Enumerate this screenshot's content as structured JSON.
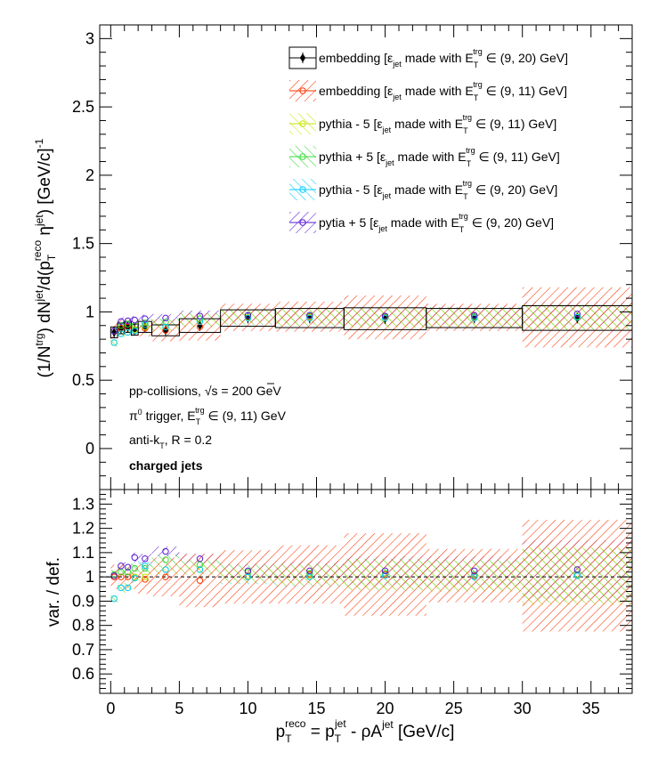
{
  "chart_data": [
    {
      "type": "scatter",
      "panel": "top",
      "ylabel_parts": {
        "a": "(1/N",
        "a_sup": "trg",
        "b": ") dN",
        "b_sup": "jet",
        "c": "/d(p",
        "c_sub": "T",
        "c_sup": "reco",
        "d": " η",
        "d_sup": "jet",
        "e": ") [GeV/c]",
        "e_sup": "-1"
      },
      "xlim": [
        -0.8,
        38
      ],
      "ylim": [
        -0.3,
        3.1
      ],
      "yticks": [
        "0",
        "0.5",
        "1",
        "1.5",
        "2",
        "2.5",
        "3"
      ],
      "yticks_values": [
        0,
        0.5,
        1,
        1.5,
        2,
        2.5,
        3
      ],
      "bins": [
        [
          0,
          0.5
        ],
        [
          0.5,
          1
        ],
        [
          1,
          1.5
        ],
        [
          1.5,
          2
        ],
        [
          2,
          3
        ],
        [
          3,
          5
        ],
        [
          5,
          8
        ],
        [
          8,
          12
        ],
        [
          12,
          17
        ],
        [
          17,
          23
        ],
        [
          23,
          30
        ],
        [
          30,
          38
        ]
      ],
      "x_centers": [
        0.25,
        0.75,
        1.25,
        1.75,
        2.5,
        4.0,
        6.5,
        10.0,
        14.5,
        20.0,
        26.5,
        34.0
      ],
      "series": [
        {
          "key": "emb20",
          "color": "#000000",
          "y": [
            0.85,
            0.88,
            0.89,
            0.87,
            0.89,
            0.865,
            0.9,
            0.955,
            0.955,
            0.95,
            0.955,
            0.955
          ],
          "sys": [
            0.04,
            0.04,
            0.04,
            0.04,
            0.04,
            0.04,
            0.05,
            0.06,
            0.07,
            0.08,
            0.07,
            0.09
          ]
        },
        {
          "key": "emb11",
          "color": "#ff3300",
          "y": [
            0.86,
            0.88,
            0.89,
            0.87,
            0.88,
            0.865,
            0.89,
            0.96,
            0.965,
            0.96,
            0.96,
            0.96
          ],
          "sys": [
            0.06,
            0.06,
            0.06,
            0.06,
            0.06,
            0.08,
            0.1,
            0.1,
            0.11,
            0.16,
            0.1,
            0.22
          ]
        },
        {
          "key": "pyMinus11",
          "color": "#c8e600",
          "y": [
            0.775,
            0.84,
            0.85,
            0.87,
            0.89,
            0.89,
            0.93,
            0.96,
            0.96,
            0.955,
            0.955,
            0.96
          ],
          "sys": [
            0.03,
            0.03,
            0.03,
            0.03,
            0.03,
            0.03,
            0.04,
            0.05,
            0.06,
            0.07,
            0.07,
            0.09
          ]
        },
        {
          "key": "pyPlus11",
          "color": "#33dd33",
          "y": [
            0.86,
            0.9,
            0.91,
            0.9,
            0.92,
            0.925,
            0.95,
            0.975,
            0.97,
            0.965,
            0.965,
            0.965
          ],
          "sys": [
            0.03,
            0.03,
            0.03,
            0.03,
            0.03,
            0.03,
            0.04,
            0.05,
            0.06,
            0.07,
            0.07,
            0.09
          ]
        },
        {
          "key": "pyMinus20",
          "color": "#00ccff",
          "y": [
            0.775,
            0.84,
            0.85,
            0.86,
            0.905,
            0.89,
            0.93,
            0.955,
            0.955,
            0.955,
            0.955,
            0.96
          ],
          "sys": [
            0.03,
            0.03,
            0.03,
            0.03,
            0.03,
            0.03,
            0.04,
            0.05,
            0.06,
            0.07,
            0.07,
            0.09
          ]
        },
        {
          "key": "pyPlus20",
          "color": "#5a1ad6",
          "y": [
            0.86,
            0.93,
            0.935,
            0.94,
            0.95,
            0.955,
            0.97,
            0.975,
            0.975,
            0.97,
            0.975,
            0.985
          ],
          "sys": [
            0.03,
            0.03,
            0.03,
            0.03,
            0.03,
            0.03,
            0.04,
            0.05,
            0.06,
            0.07,
            0.07,
            0.09
          ]
        }
      ],
      "legend_placement": "top-right",
      "legend": [
        {
          "key": "emb20",
          "name_pre": "embedding [ε",
          "name_sub": "jet",
          "name_mid": " made with E",
          "name_msub": "T",
          "name_msup": "trg",
          "name_post": " ∈ (9, 20) GeV]"
        },
        {
          "key": "emb11",
          "name_pre": "embedding [ε",
          "name_sub": "jet",
          "name_mid": " made with E",
          "name_msub": "T",
          "name_msup": "trg",
          "name_post": " ∈ (9, 11) GeV]"
        },
        {
          "key": "pyMinus11",
          "name_pre": "pythia - 5 [ε",
          "name_sub": "jet",
          "name_mid": " made with E",
          "name_msub": "T",
          "name_msup": "trg",
          "name_post": " ∈ (9, 11) GeV]"
        },
        {
          "key": "pyPlus11",
          "name_pre": "pythia + 5 [ε",
          "name_sub": "jet",
          "name_mid": " made with E",
          "name_msub": "T",
          "name_msup": "trg",
          "name_post": " ∈ (9, 11) GeV]"
        },
        {
          "key": "pyMinus20",
          "name_pre": "pythia - 5 [ε",
          "name_sub": "jet",
          "name_mid": " made with E",
          "name_msub": "T",
          "name_msup": "trg",
          "name_post": " ∈ (9, 20) GeV]"
        },
        {
          "key": "pyPlus20",
          "name_pre": "pytia + 5 [ε",
          "name_sub": "jet",
          "name_mid": " made with E",
          "name_msub": "T",
          "name_msup": "trg",
          "name_post": " ∈ (9, 20) GeV]"
        }
      ],
      "annotations": {
        "line1_pre": "pp-collisions, ",
        "line1_root": "s",
        "line1_post": " = 200 GeV",
        "line2_a": "π",
        "line2_a_sup": "0",
        "line2_b": " trigger, E",
        "line2_b_sub": "T",
        "line2_b_sup": "trg",
        "line2_c": " ∈ (9, 11) GeV",
        "line3_a": "anti-k",
        "line3_a_sub": "T",
        "line3_b": ", R = 0.2",
        "line4": "charged jets"
      }
    },
    {
      "type": "scatter",
      "panel": "bottom",
      "ylabel": "var. / def.",
      "ylim": [
        0.52,
        1.36
      ],
      "yticks": [
        "0.6",
        "0.7",
        "0.8",
        "0.9",
        "1",
        "1.1",
        "1.2",
        "1.3"
      ],
      "yticks_values": [
        0.6,
        0.7,
        0.8,
        0.9,
        1.0,
        1.1,
        1.2,
        1.3
      ],
      "xticks": [
        "0",
        "5",
        "10",
        "15",
        "20",
        "25",
        "30",
        "35"
      ],
      "xticks_values": [
        0,
        5,
        10,
        15,
        20,
        25,
        30,
        35
      ],
      "xlabel_parts": {
        "a": "p",
        "a_sub": "T",
        "a_sup": "reco",
        "b": " = p",
        "b_sub": "T",
        "b_sup": "jet",
        "c": " - ρA",
        "c_sup": "jet",
        "d": " [GeV/c]"
      },
      "reference_line": 1.0,
      "series": [
        {
          "key": "emb11",
          "color": "#ff3300",
          "y": [
            1.0,
            1.0,
            1.0,
            1.0,
            0.99,
            1.0,
            0.985,
            1.0,
            1.01,
            1.01,
            1.005,
            1.005
          ],
          "sys": [
            0.05,
            0.05,
            0.05,
            0.05,
            0.06,
            0.08,
            0.11,
            0.11,
            0.12,
            0.17,
            0.11,
            0.23
          ]
        },
        {
          "key": "pyMinus11",
          "color": "#c8e600",
          "y": [
            0.91,
            0.955,
            0.955,
            1.0,
            1.0,
            1.03,
            1.03,
            1.005,
            1.005,
            1.005,
            1.0,
            1.005
          ],
          "sys": [
            0.02,
            0.02,
            0.02,
            0.02,
            0.02,
            0.02,
            0.02,
            0.03,
            0.04,
            0.06,
            0.06,
            0.12
          ]
        },
        {
          "key": "pyPlus11",
          "color": "#33dd33",
          "y": [
            1.01,
            1.02,
            1.02,
            1.035,
            1.035,
            1.07,
            1.05,
            1.02,
            1.015,
            1.015,
            1.01,
            1.01
          ],
          "sys": [
            0.02,
            0.02,
            0.02,
            0.02,
            0.02,
            0.02,
            0.02,
            0.03,
            0.04,
            0.06,
            0.06,
            0.11
          ]
        },
        {
          "key": "pyMinus20",
          "color": "#00ccff",
          "y": [
            0.91,
            0.955,
            0.955,
            0.995,
            1.045,
            1.03,
            1.03,
            1.0,
            1.0,
            1.005,
            1.0,
            1.005
          ],
          "sys": [
            0.02,
            0.02,
            0.02,
            0.02,
            0.02,
            0.02,
            0.02,
            0.03,
            0.04,
            0.06,
            0.06,
            0.11
          ]
        },
        {
          "key": "pyPlus20",
          "color": "#5a1ad6",
          "y": [
            1.005,
            1.045,
            1.04,
            1.08,
            1.075,
            1.105,
            1.075,
            1.025,
            1.025,
            1.025,
            1.025,
            1.03
          ],
          "sys": [
            0.02,
            0.02,
            0.02,
            0.02,
            0.02,
            0.02,
            0.02,
            0.03,
            0.04,
            0.06,
            0.06,
            0.12
          ]
        }
      ]
    }
  ]
}
